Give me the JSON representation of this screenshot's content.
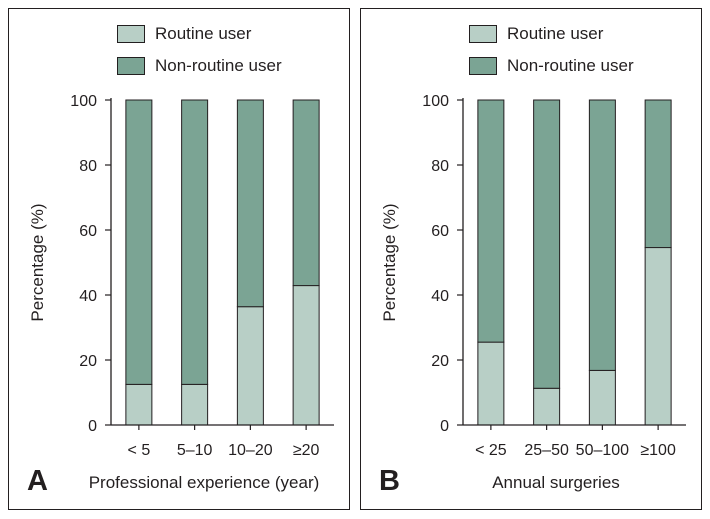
{
  "colors": {
    "routine": "#b8cfc6",
    "nonroutine": "#7ba494",
    "axis": "#231f20"
  },
  "chart_data": [
    {
      "panel": "A",
      "type": "bar",
      "stacked": true,
      "xlabel": "Professional experience (year)",
      "ylabel": "Percentage (%)",
      "ylim": [
        0,
        100
      ],
      "yticks": [
        0,
        20,
        40,
        60,
        80,
        100
      ],
      "categories": [
        "< 5",
        "5–10",
        "10–20",
        "≥20"
      ],
      "legend": [
        "Routine user",
        "Non-routine user"
      ],
      "series": [
        {
          "name": "Routine user",
          "values": [
            12.5,
            12.5,
            36.4,
            42.9
          ]
        },
        {
          "name": "Non-routine user",
          "values": [
            87.5,
            87.5,
            63.6,
            57.1
          ]
        }
      ]
    },
    {
      "panel": "B",
      "type": "bar",
      "stacked": true,
      "xlabel": "Annual surgeries",
      "ylabel": "Percentage (%)",
      "ylim": [
        0,
        100
      ],
      "yticks": [
        0,
        20,
        40,
        60,
        80,
        100
      ],
      "categories": [
        "< 25",
        "25–50",
        "50–100",
        "≥100"
      ],
      "legend": [
        "Routine user",
        "Non-routine user"
      ],
      "series": [
        {
          "name": "Routine user",
          "values": [
            25.5,
            11.3,
            16.8,
            54.6
          ]
        },
        {
          "name": "Non-routine user",
          "values": [
            74.5,
            88.7,
            83.2,
            45.4
          ]
        }
      ]
    }
  ]
}
